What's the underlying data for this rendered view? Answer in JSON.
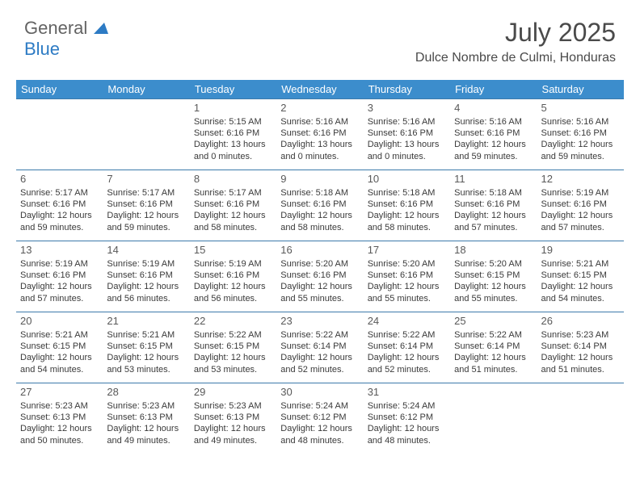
{
  "brand": {
    "part1": "General",
    "part2": "Blue"
  },
  "title": "July 2025",
  "location": "Dulce Nombre de Culmi, Honduras",
  "header_bg": "#3c8dcc",
  "header_fg": "#ffffff",
  "border_color": "#3c7aaa",
  "days_of_week": [
    "Sunday",
    "Monday",
    "Tuesday",
    "Wednesday",
    "Thursday",
    "Friday",
    "Saturday"
  ],
  "weeks": [
    [
      null,
      null,
      {
        "n": "1",
        "sr": "Sunrise: 5:15 AM",
        "ss": "Sunset: 6:16 PM",
        "dl": "Daylight: 13 hours and 0 minutes."
      },
      {
        "n": "2",
        "sr": "Sunrise: 5:16 AM",
        "ss": "Sunset: 6:16 PM",
        "dl": "Daylight: 13 hours and 0 minutes."
      },
      {
        "n": "3",
        "sr": "Sunrise: 5:16 AM",
        "ss": "Sunset: 6:16 PM",
        "dl": "Daylight: 13 hours and 0 minutes."
      },
      {
        "n": "4",
        "sr": "Sunrise: 5:16 AM",
        "ss": "Sunset: 6:16 PM",
        "dl": "Daylight: 12 hours and 59 minutes."
      },
      {
        "n": "5",
        "sr": "Sunrise: 5:16 AM",
        "ss": "Sunset: 6:16 PM",
        "dl": "Daylight: 12 hours and 59 minutes."
      }
    ],
    [
      {
        "n": "6",
        "sr": "Sunrise: 5:17 AM",
        "ss": "Sunset: 6:16 PM",
        "dl": "Daylight: 12 hours and 59 minutes."
      },
      {
        "n": "7",
        "sr": "Sunrise: 5:17 AM",
        "ss": "Sunset: 6:16 PM",
        "dl": "Daylight: 12 hours and 59 minutes."
      },
      {
        "n": "8",
        "sr": "Sunrise: 5:17 AM",
        "ss": "Sunset: 6:16 PM",
        "dl": "Daylight: 12 hours and 58 minutes."
      },
      {
        "n": "9",
        "sr": "Sunrise: 5:18 AM",
        "ss": "Sunset: 6:16 PM",
        "dl": "Daylight: 12 hours and 58 minutes."
      },
      {
        "n": "10",
        "sr": "Sunrise: 5:18 AM",
        "ss": "Sunset: 6:16 PM",
        "dl": "Daylight: 12 hours and 58 minutes."
      },
      {
        "n": "11",
        "sr": "Sunrise: 5:18 AM",
        "ss": "Sunset: 6:16 PM",
        "dl": "Daylight: 12 hours and 57 minutes."
      },
      {
        "n": "12",
        "sr": "Sunrise: 5:19 AM",
        "ss": "Sunset: 6:16 PM",
        "dl": "Daylight: 12 hours and 57 minutes."
      }
    ],
    [
      {
        "n": "13",
        "sr": "Sunrise: 5:19 AM",
        "ss": "Sunset: 6:16 PM",
        "dl": "Daylight: 12 hours and 57 minutes."
      },
      {
        "n": "14",
        "sr": "Sunrise: 5:19 AM",
        "ss": "Sunset: 6:16 PM",
        "dl": "Daylight: 12 hours and 56 minutes."
      },
      {
        "n": "15",
        "sr": "Sunrise: 5:19 AM",
        "ss": "Sunset: 6:16 PM",
        "dl": "Daylight: 12 hours and 56 minutes."
      },
      {
        "n": "16",
        "sr": "Sunrise: 5:20 AM",
        "ss": "Sunset: 6:16 PM",
        "dl": "Daylight: 12 hours and 55 minutes."
      },
      {
        "n": "17",
        "sr": "Sunrise: 5:20 AM",
        "ss": "Sunset: 6:16 PM",
        "dl": "Daylight: 12 hours and 55 minutes."
      },
      {
        "n": "18",
        "sr": "Sunrise: 5:20 AM",
        "ss": "Sunset: 6:15 PM",
        "dl": "Daylight: 12 hours and 55 minutes."
      },
      {
        "n": "19",
        "sr": "Sunrise: 5:21 AM",
        "ss": "Sunset: 6:15 PM",
        "dl": "Daylight: 12 hours and 54 minutes."
      }
    ],
    [
      {
        "n": "20",
        "sr": "Sunrise: 5:21 AM",
        "ss": "Sunset: 6:15 PM",
        "dl": "Daylight: 12 hours and 54 minutes."
      },
      {
        "n": "21",
        "sr": "Sunrise: 5:21 AM",
        "ss": "Sunset: 6:15 PM",
        "dl": "Daylight: 12 hours and 53 minutes."
      },
      {
        "n": "22",
        "sr": "Sunrise: 5:22 AM",
        "ss": "Sunset: 6:15 PM",
        "dl": "Daylight: 12 hours and 53 minutes."
      },
      {
        "n": "23",
        "sr": "Sunrise: 5:22 AM",
        "ss": "Sunset: 6:14 PM",
        "dl": "Daylight: 12 hours and 52 minutes."
      },
      {
        "n": "24",
        "sr": "Sunrise: 5:22 AM",
        "ss": "Sunset: 6:14 PM",
        "dl": "Daylight: 12 hours and 52 minutes."
      },
      {
        "n": "25",
        "sr": "Sunrise: 5:22 AM",
        "ss": "Sunset: 6:14 PM",
        "dl": "Daylight: 12 hours and 51 minutes."
      },
      {
        "n": "26",
        "sr": "Sunrise: 5:23 AM",
        "ss": "Sunset: 6:14 PM",
        "dl": "Daylight: 12 hours and 51 minutes."
      }
    ],
    [
      {
        "n": "27",
        "sr": "Sunrise: 5:23 AM",
        "ss": "Sunset: 6:13 PM",
        "dl": "Daylight: 12 hours and 50 minutes."
      },
      {
        "n": "28",
        "sr": "Sunrise: 5:23 AM",
        "ss": "Sunset: 6:13 PM",
        "dl": "Daylight: 12 hours and 49 minutes."
      },
      {
        "n": "29",
        "sr": "Sunrise: 5:23 AM",
        "ss": "Sunset: 6:13 PM",
        "dl": "Daylight: 12 hours and 49 minutes."
      },
      {
        "n": "30",
        "sr": "Sunrise: 5:24 AM",
        "ss": "Sunset: 6:12 PM",
        "dl": "Daylight: 12 hours and 48 minutes."
      },
      {
        "n": "31",
        "sr": "Sunrise: 5:24 AM",
        "ss": "Sunset: 6:12 PM",
        "dl": "Daylight: 12 hours and 48 minutes."
      },
      null,
      null
    ]
  ]
}
